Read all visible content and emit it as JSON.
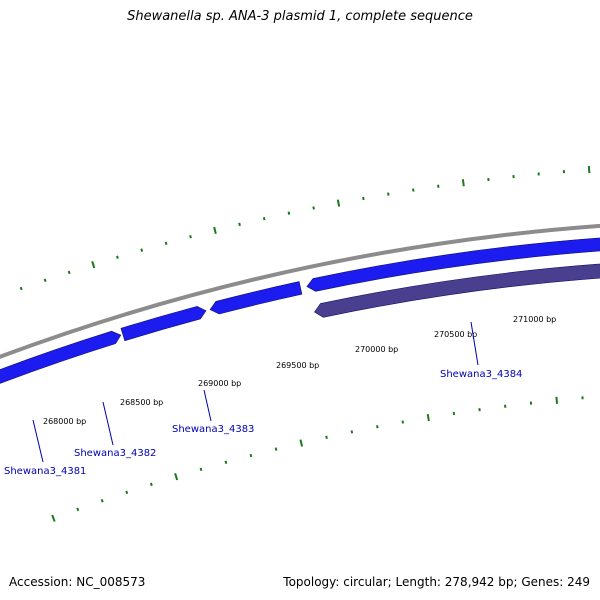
{
  "title": "Shewanella sp. ANA-3 plasmid 1, complete sequence",
  "footer": {
    "accession": "Accession: NC_008573",
    "summary": "Topology: circular; Length: 278,942 bp; Genes: 249"
  },
  "colors": {
    "backbone": "#8c8c8c",
    "forward_gene": "#1c1cf0",
    "reverse_gene": "#4a3f8f",
    "ticks": "#1a7a1a",
    "gene_label": "#0000b4"
  },
  "scale_labels": [
    {
      "text": "268000 bp",
      "bp": 268000
    },
    {
      "text": "268500 bp",
      "bp": 268500
    },
    {
      "text": "269000 bp",
      "bp": 269000
    },
    {
      "text": "269500 bp",
      "bp": 269500
    },
    {
      "text": "270000 bp",
      "bp": 270000
    },
    {
      "text": "270500 bp",
      "bp": 270500
    },
    {
      "text": "271000 bp",
      "bp": 271000
    }
  ],
  "genes": [
    {
      "label": "Shewana3_4381",
      "strand": "+"
    },
    {
      "label": "Shewana3_4382",
      "strand": "+"
    },
    {
      "label": "Shewana3_4383",
      "strand": "+"
    },
    {
      "label": "Shewana3_4384",
      "strand": "-"
    }
  ]
}
